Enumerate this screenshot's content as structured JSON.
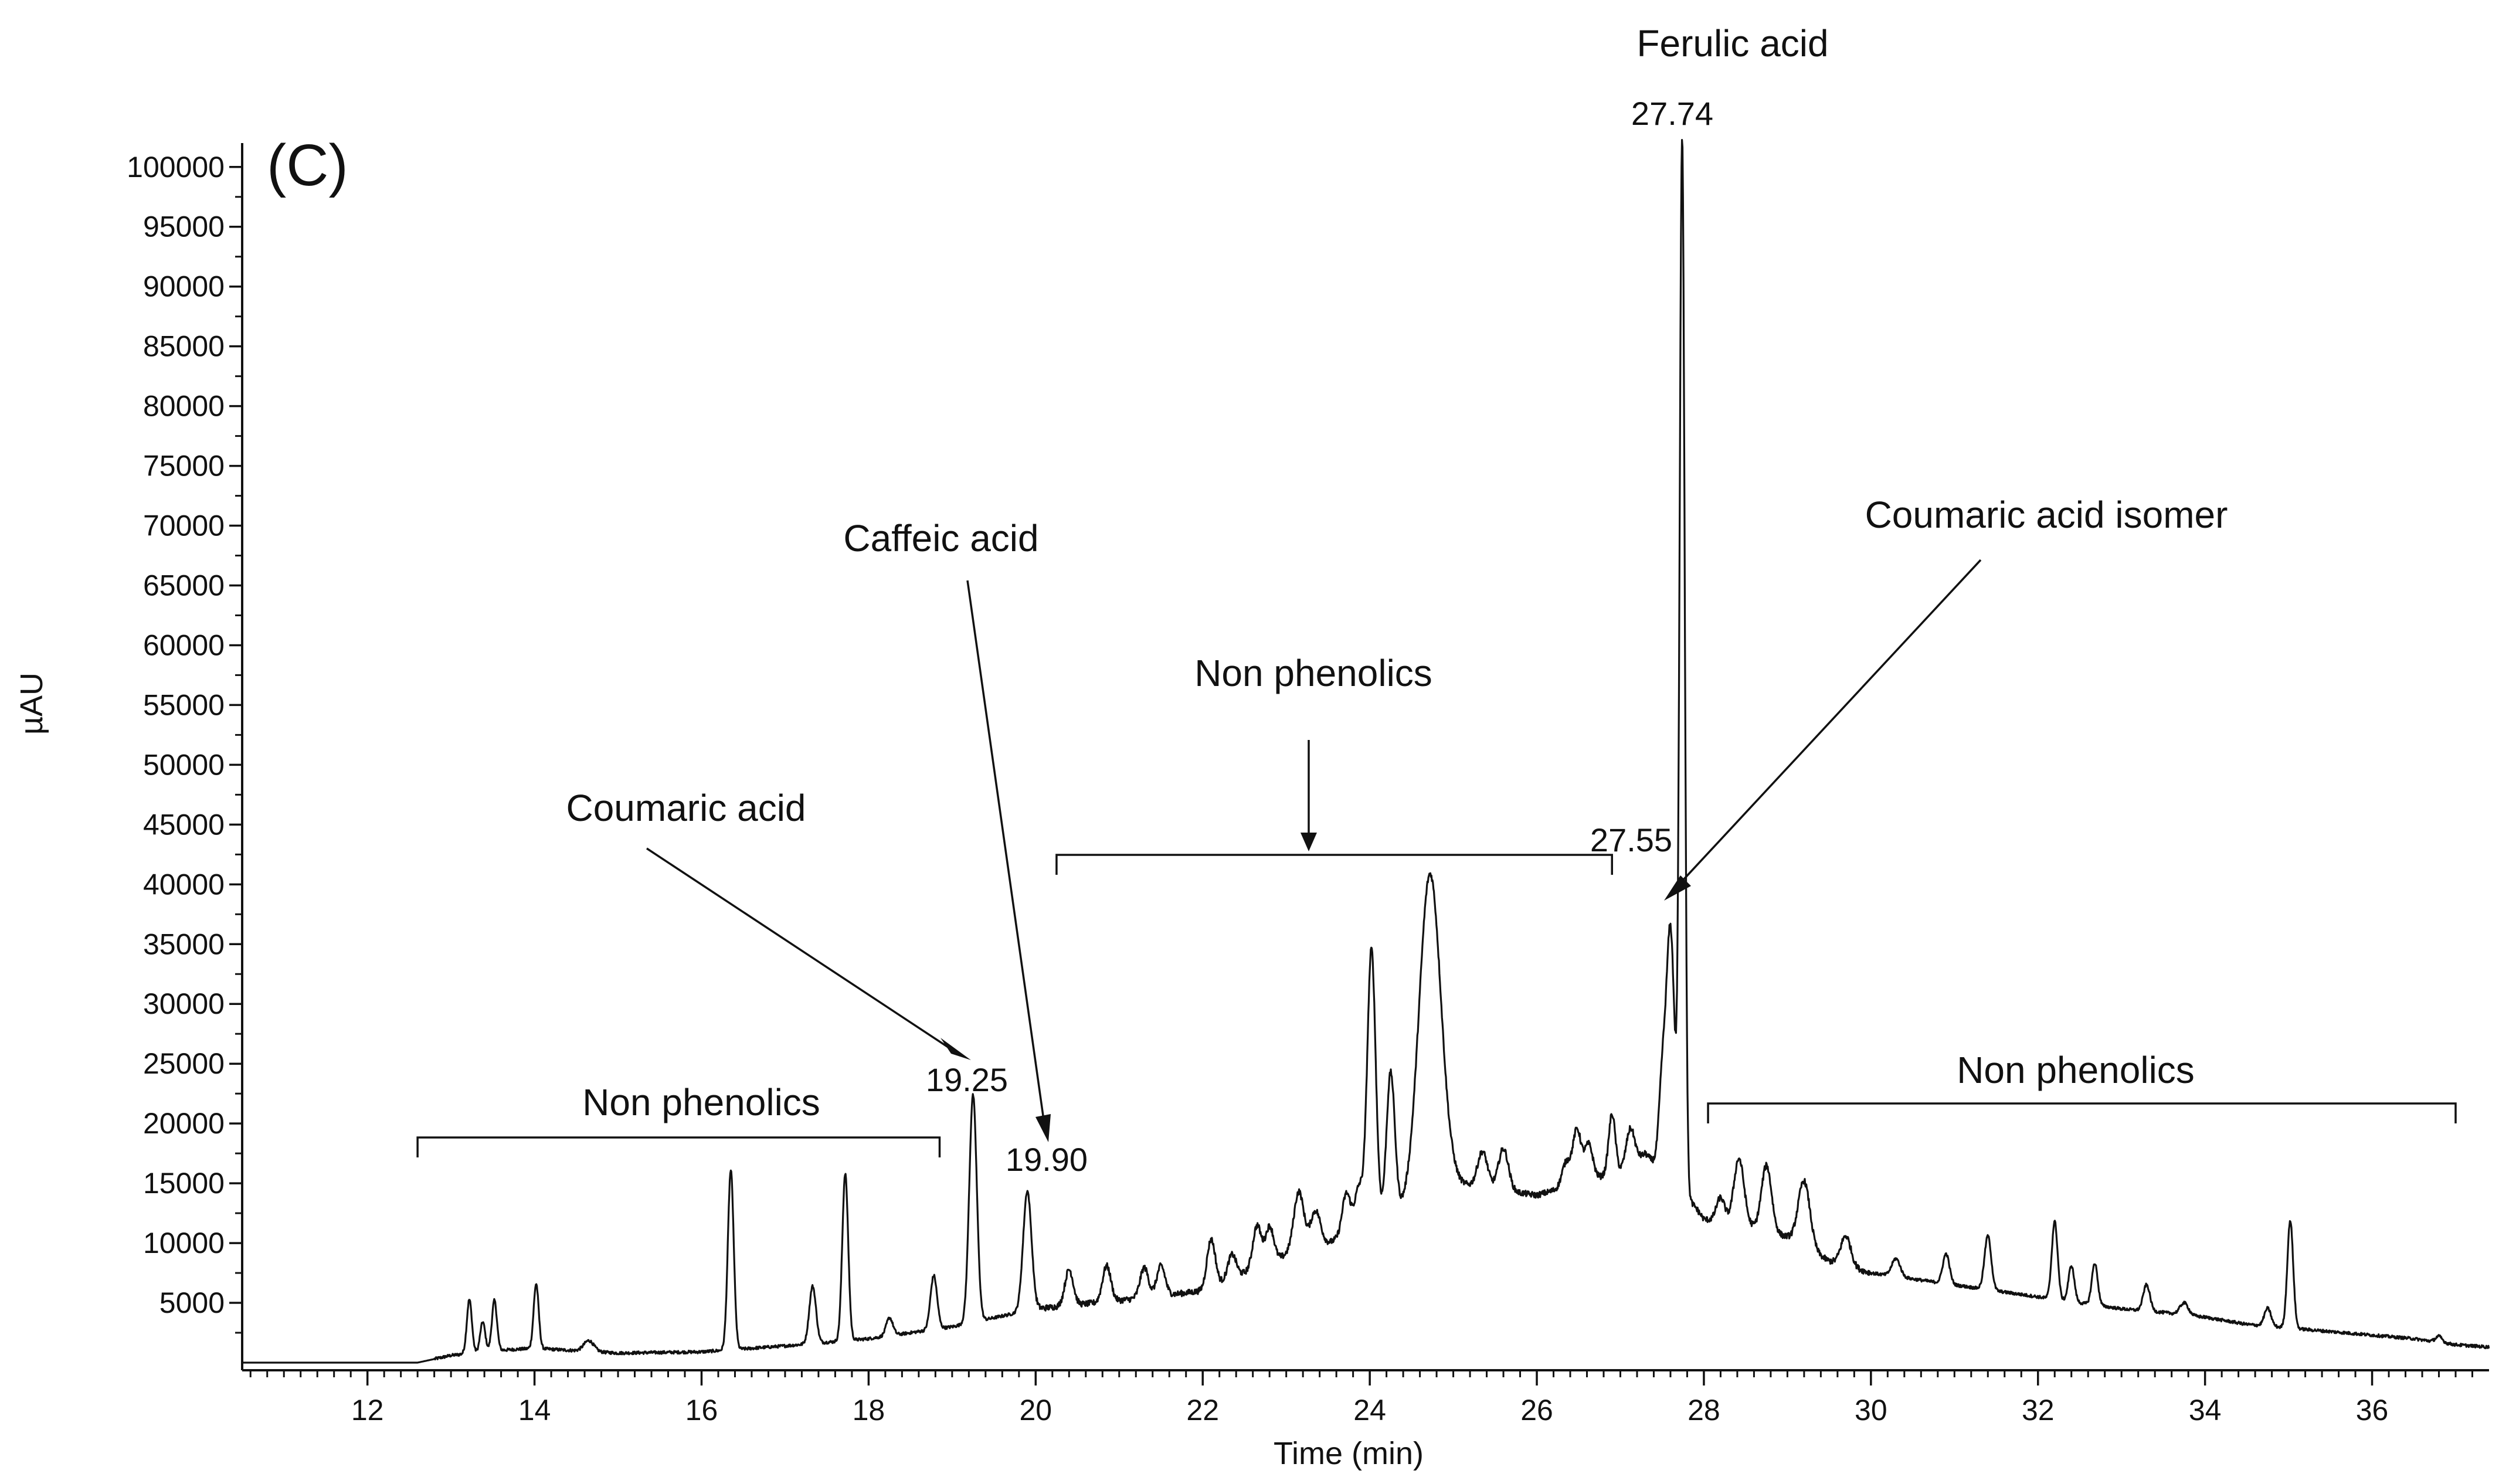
{
  "chart_data": {
    "type": "line",
    "panel_label": "(C)",
    "xlabel": "Time (min)",
    "ylabel": "µAU",
    "xlim": [
      10.5,
      37.4
    ],
    "ylim": [
      0,
      102000
    ],
    "x_ticks": [
      12,
      14,
      16,
      18,
      20,
      22,
      24,
      26,
      28,
      30,
      32,
      34,
      36
    ],
    "x_tick_labels": [
      "12",
      "14",
      "16",
      "18",
      "20",
      "22",
      "24",
      "26",
      "28",
      "30",
      "32",
      "34",
      "36"
    ],
    "y_ticks": [
      5000,
      10000,
      15000,
      20000,
      25000,
      30000,
      35000,
      40000,
      45000,
      50000,
      55000,
      60000,
      65000,
      70000,
      75000,
      80000,
      85000,
      90000,
      95000,
      100000
    ],
    "y_tick_labels": [
      "5000",
      "10000",
      "15000",
      "20000",
      "25000",
      "30000",
      "35000",
      "40000",
      "45000",
      "50000",
      "55000",
      "60000",
      "65000",
      "70000",
      "75000",
      "80000",
      "85000",
      "90000",
      "95000",
      "100000"
    ],
    "grid": false,
    "series": [
      {
        "baseline": [
          [
            10.5,
            0
          ],
          [
            12.6,
            0
          ],
          [
            13.0,
            600
          ],
          [
            13.5,
            1000
          ],
          [
            14.0,
            1200
          ],
          [
            15.0,
            800
          ],
          [
            16.0,
            900
          ],
          [
            17.0,
            1400
          ],
          [
            18.0,
            2000
          ],
          [
            19.0,
            3000
          ],
          [
            20.0,
            4500
          ],
          [
            21.0,
            5200
          ],
          [
            22.0,
            6000
          ],
          [
            22.5,
            7500
          ],
          [
            23.0,
            9000
          ],
          [
            23.5,
            10000
          ],
          [
            24.0,
            11500
          ],
          [
            24.5,
            13000
          ],
          [
            25.0,
            15000
          ],
          [
            25.5,
            14500
          ],
          [
            26.0,
            14000
          ],
          [
            26.5,
            15000
          ],
          [
            27.0,
            16000
          ],
          [
            27.3,
            17500
          ],
          [
            27.9,
            13000
          ],
          [
            28.0,
            12000
          ],
          [
            28.5,
            11500
          ],
          [
            29.0,
            10500
          ],
          [
            29.5,
            8500
          ],
          [
            30.0,
            7500
          ],
          [
            30.5,
            7000
          ],
          [
            31.0,
            6500
          ],
          [
            31.5,
            6000
          ],
          [
            32.0,
            5500
          ],
          [
            32.5,
            5000
          ],
          [
            33.0,
            4500
          ],
          [
            33.5,
            4200
          ],
          [
            34.0,
            3800
          ],
          [
            34.5,
            3200
          ],
          [
            35.0,
            2900
          ],
          [
            35.5,
            2600
          ],
          [
            36.0,
            2300
          ],
          [
            36.5,
            2000
          ],
          [
            37.0,
            1500
          ],
          [
            37.4,
            1300
          ]
        ],
        "peaks": [
          [
            13.22,
            4500,
            0.03
          ],
          [
            13.38,
            2500,
            0.03
          ],
          [
            13.52,
            4200,
            0.03
          ],
          [
            14.02,
            5400,
            0.03
          ],
          [
            14.65,
            900,
            0.06
          ],
          [
            16.35,
            15000,
            0.035
          ],
          [
            17.33,
            4800,
            0.04
          ],
          [
            17.72,
            14000,
            0.035
          ],
          [
            18.25,
            1500,
            0.04
          ],
          [
            18.78,
            4500,
            0.04
          ],
          [
            19.25,
            19000,
            0.045
          ],
          [
            19.9,
            10000,
            0.05
          ],
          [
            20.4,
            3000,
            0.05
          ],
          [
            20.85,
            3000,
            0.05
          ],
          [
            21.3,
            2500,
            0.05
          ],
          [
            21.5,
            2500,
            0.05
          ],
          [
            22.1,
            4000,
            0.05
          ],
          [
            22.35,
            2000,
            0.05
          ],
          [
            22.65,
            3500,
            0.05
          ],
          [
            22.8,
            3000,
            0.05
          ],
          [
            23.15,
            5000,
            0.06
          ],
          [
            23.35,
            3000,
            0.06
          ],
          [
            23.72,
            3500,
            0.05
          ],
          [
            23.87,
            3500,
            0.05
          ],
          [
            24.02,
            23000,
            0.05
          ],
          [
            24.25,
            12000,
            0.05
          ],
          [
            24.72,
            27000,
            0.13
          ],
          [
            25.35,
            3000,
            0.06
          ],
          [
            25.6,
            3500,
            0.06
          ],
          [
            26.35,
            2000,
            0.05
          ],
          [
            26.48,
            4500,
            0.05
          ],
          [
            26.62,
            3000,
            0.05
          ],
          [
            26.9,
            5000,
            0.04
          ],
          [
            27.12,
            3000,
            0.05
          ],
          [
            27.5,
            7000,
            0.04
          ],
          [
            27.6,
            21000,
            0.05
          ],
          [
            27.74,
            88000,
            0.03
          ],
          [
            28.2,
            2000,
            0.05
          ],
          [
            28.42,
            5500,
            0.06
          ],
          [
            28.75,
            5500,
            0.06
          ],
          [
            29.2,
            5500,
            0.07
          ],
          [
            29.7,
            2500,
            0.06
          ],
          [
            30.3,
            1500,
            0.05
          ],
          [
            30.9,
            2500,
            0.04
          ],
          [
            31.4,
            4500,
            0.04
          ],
          [
            32.2,
            6500,
            0.035
          ],
          [
            32.4,
            3000,
            0.035
          ],
          [
            32.68,
            3500,
            0.035
          ],
          [
            33.3,
            2200,
            0.04
          ],
          [
            33.75,
            1000,
            0.05
          ],
          [
            34.75,
            1500,
            0.04
          ],
          [
            35.02,
            9000,
            0.035
          ],
          [
            36.8,
            500,
            0.04
          ]
        ]
      }
    ],
    "annotations": [
      {
        "key": "ferulic",
        "label": "Ferulic acid",
        "rt": "27.74"
      },
      {
        "key": "caffeic",
        "label": "Caffeic acid",
        "rt": "19.90"
      },
      {
        "key": "coumaric",
        "label": "Coumaric acid",
        "rt": "19.25"
      },
      {
        "key": "coumaric_isomer",
        "label": "Coumaric acid isomer",
        "rt": "27.55"
      }
    ],
    "brackets": [
      {
        "label": "Non phenolics",
        "x_range": [
          12.6,
          18.85
        ]
      },
      {
        "label": "Non phenolics",
        "x_range": [
          20.25,
          26.9
        ]
      },
      {
        "label": "Non phenolics",
        "x_range": [
          28.05,
          37.0
        ]
      }
    ]
  }
}
